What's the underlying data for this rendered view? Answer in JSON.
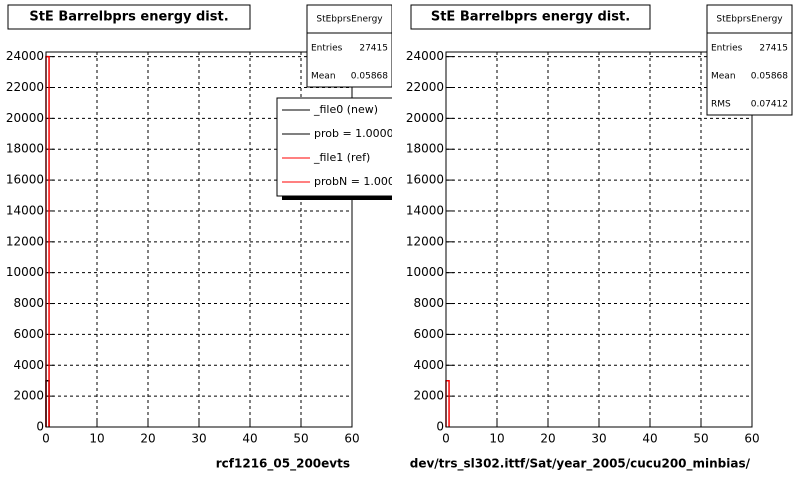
{
  "chart_data": [
    {
      "type": "histogram",
      "title": "StE Barrelbprs energy dist.",
      "x_label": "rcf1216_05_200evts",
      "bins": [
        0,
        0.6
      ],
      "series": [
        {
          "name": "_file0 (new)",
          "stat_label": "prob = 1.000000",
          "color": "#000000",
          "values": [
            3000
          ]
        },
        {
          "name": "_file1 (ref)",
          "stat_label": "probN = 1.000000",
          "color": "#ff0000",
          "values": [
            24000
          ]
        }
      ],
      "xlim": [
        0,
        60
      ],
      "xticks": [
        0,
        10,
        20,
        30,
        40,
        50,
        60
      ],
      "ylim": [
        0,
        24300
      ],
      "yticks": [
        0,
        2000,
        4000,
        6000,
        8000,
        10000,
        12000,
        14000,
        16000,
        18000,
        20000,
        22000,
        24000
      ],
      "grid": true,
      "stats": {
        "title": "StEbprsEnergy",
        "rows": [
          {
            "label": "Entries",
            "value": 27415
          },
          {
            "label": "Mean",
            "value": 0.05868
          }
        ]
      }
    },
    {
      "type": "histogram",
      "title": "StE Barrelbprs energy dist.",
      "x_label": "dev/trs_sl302.ittf/Sat/year_2005/cucu200_minbias/",
      "bins": [
        0,
        0.6
      ],
      "series": [
        {
          "color": "#ff0000",
          "values": [
            3000
          ]
        }
      ],
      "xlim": [
        0,
        60
      ],
      "xticks": [
        0,
        10,
        20,
        30,
        40,
        50,
        60
      ],
      "ylim": [
        0,
        24300
      ],
      "yticks": [
        0,
        2000,
        4000,
        6000,
        8000,
        10000,
        12000,
        14000,
        16000,
        18000,
        20000,
        22000,
        24000
      ],
      "grid": true,
      "stats": {
        "title": "StEbprsEnergy",
        "rows": [
          {
            "label": "Entries",
            "value": 27415
          },
          {
            "label": "Mean",
            "value": 0.05868
          },
          {
            "label": "RMS",
            "value": 0.07412
          }
        ]
      }
    }
  ]
}
